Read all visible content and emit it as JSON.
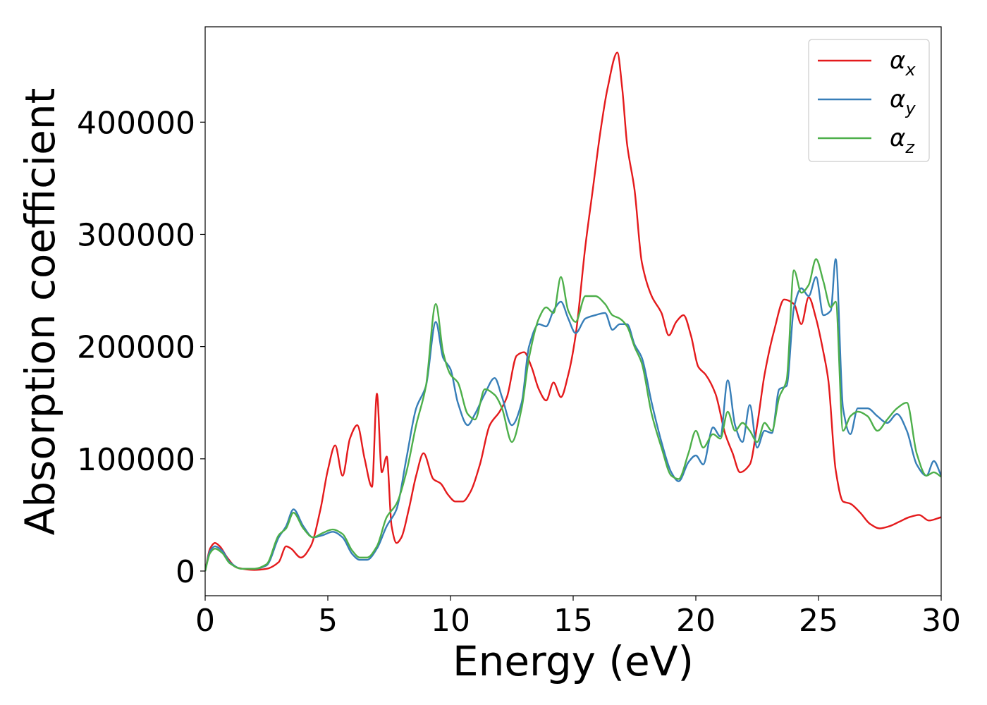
{
  "chart_data": {
    "type": "line",
    "title": "",
    "xlabel": "Energy (eV)",
    "ylabel": "Absorption coefficient",
    "xlim": [
      0,
      30
    ],
    "ylim": [
      -22000,
      485000
    ],
    "xticks": [
      0,
      5,
      10,
      15,
      20,
      25,
      30
    ],
    "xtick_labels": [
      "0",
      "5",
      "10",
      "15",
      "20",
      "25",
      "30"
    ],
    "yticks": [
      0,
      100000,
      200000,
      300000,
      400000
    ],
    "ytick_labels": [
      "0",
      "100000",
      "200000",
      "300000",
      "400000"
    ],
    "grid": false,
    "legend_position": "top-right",
    "series": [
      {
        "name": "α_x",
        "label_main": "α",
        "label_sub": "x",
        "color": "#e41a1c",
        "x": [
          0,
          0.2,
          0.4,
          0.6,
          0.9,
          1.3,
          2.0,
          2.5,
          3.0,
          3.3,
          3.5,
          3.9,
          4.3,
          4.7,
          5.0,
          5.3,
          5.6,
          5.9,
          6.2,
          6.5,
          6.8,
          7.0,
          7.2,
          7.4,
          7.6,
          7.8,
          8.0,
          8.3,
          8.6,
          8.9,
          9.3,
          9.6,
          9.9,
          10.2,
          10.5,
          10.8,
          11.2,
          11.6,
          12.0,
          12.3,
          12.7,
          13.0,
          13.3,
          13.6,
          13.9,
          14.2,
          14.5,
          14.8,
          15.1,
          15.5,
          15.8,
          16.1,
          16.4,
          16.8,
          17.0,
          17.2,
          17.5,
          17.8,
          18.2,
          18.6,
          18.9,
          19.2,
          19.5,
          19.8,
          20.1,
          20.4,
          20.8,
          21.2,
          21.5,
          21.8,
          22.2,
          22.5,
          22.8,
          23.2,
          23.6,
          24.0,
          24.3,
          24.6,
          24.9,
          25.2,
          25.4,
          25.7,
          26.0,
          26.3,
          26.7,
          27.1,
          27.5,
          27.9,
          28.3,
          28.7,
          29.1,
          29.5,
          30.0
        ],
        "y": [
          0,
          20000,
          25000,
          22000,
          12000,
          3000,
          1000,
          2000,
          8000,
          22000,
          20000,
          12000,
          22000,
          55000,
          90000,
          112000,
          85000,
          118000,
          130000,
          100000,
          75000,
          158000,
          88000,
          102000,
          40000,
          25000,
          30000,
          55000,
          85000,
          105000,
          82000,
          78000,
          68000,
          62000,
          62000,
          70000,
          95000,
          130000,
          142000,
          155000,
          192000,
          195000,
          182000,
          162000,
          152000,
          168000,
          155000,
          175000,
          210000,
          290000,
          340000,
          390000,
          430000,
          462000,
          430000,
          380000,
          340000,
          275000,
          245000,
          230000,
          210000,
          222000,
          228000,
          210000,
          182000,
          175000,
          158000,
          122000,
          105000,
          88000,
          95000,
          130000,
          175000,
          215000,
          242000,
          238000,
          220000,
          244000,
          225000,
          195000,
          170000,
          90000,
          62000,
          60000,
          52000,
          42000,
          38000,
          40000,
          44000,
          48000,
          50000,
          45000,
          48000
        ]
      },
      {
        "name": "α_y",
        "label_main": "α",
        "label_sub": "y",
        "color": "#377eb8",
        "x": [
          0,
          0.2,
          0.4,
          0.7,
          1.0,
          1.5,
          2.0,
          2.5,
          3.0,
          3.3,
          3.6,
          4.0,
          4.4,
          4.8,
          5.2,
          5.6,
          6.0,
          6.3,
          6.6,
          7.0,
          7.4,
          7.8,
          8.2,
          8.6,
          9.0,
          9.4,
          9.7,
          10.0,
          10.3,
          10.7,
          11.0,
          11.4,
          11.8,
          12.1,
          12.5,
          12.9,
          13.2,
          13.6,
          13.9,
          14.2,
          14.5,
          14.8,
          15.1,
          15.5,
          15.9,
          16.3,
          16.6,
          16.9,
          17.2,
          17.5,
          17.8,
          18.2,
          18.6,
          19.0,
          19.3,
          19.7,
          20.0,
          20.3,
          20.7,
          21.0,
          21.3,
          21.6,
          21.9,
          22.2,
          22.5,
          22.8,
          23.1,
          23.4,
          23.7,
          24.0,
          24.3,
          24.6,
          24.9,
          25.2,
          25.5,
          25.7,
          26.0,
          26.3,
          26.6,
          27.0,
          27.4,
          27.8,
          28.2,
          28.6,
          29.0,
          29.4,
          29.7,
          30.0
        ],
        "y": [
          0,
          18000,
          22000,
          18000,
          8000,
          2000,
          2000,
          5000,
          30000,
          40000,
          55000,
          40000,
          30000,
          32000,
          35000,
          30000,
          15000,
          10000,
          10000,
          20000,
          40000,
          55000,
          100000,
          145000,
          165000,
          222000,
          190000,
          180000,
          150000,
          130000,
          140000,
          158000,
          172000,
          155000,
          130000,
          150000,
          200000,
          220000,
          218000,
          232000,
          240000,
          225000,
          212000,
          225000,
          228000,
          230000,
          215000,
          220000,
          220000,
          202000,
          190000,
          150000,
          115000,
          88000,
          80000,
          97000,
          103000,
          95000,
          128000,
          120000,
          170000,
          130000,
          115000,
          148000,
          110000,
          125000,
          123000,
          162000,
          165000,
          235000,
          252000,
          245000,
          262000,
          228000,
          232000,
          278000,
          145000,
          122000,
          145000,
          145000,
          138000,
          132000,
          140000,
          125000,
          95000,
          85000,
          98000,
          85000
        ]
      },
      {
        "name": "α_z",
        "label_main": "α",
        "label_sub": "z",
        "color": "#4daf4a",
        "x": [
          0,
          0.2,
          0.4,
          0.7,
          1.0,
          1.5,
          2.0,
          2.5,
          3.0,
          3.3,
          3.6,
          4.0,
          4.4,
          4.8,
          5.2,
          5.6,
          6.0,
          6.3,
          6.6,
          7.0,
          7.4,
          7.8,
          8.2,
          8.6,
          9.0,
          9.4,
          9.7,
          10.0,
          10.3,
          10.7,
          11.0,
          11.4,
          11.8,
          12.1,
          12.5,
          12.9,
          13.2,
          13.6,
          13.9,
          14.2,
          14.5,
          14.8,
          15.1,
          15.5,
          15.9,
          16.3,
          16.6,
          16.9,
          17.2,
          17.5,
          17.8,
          18.2,
          18.6,
          19.0,
          19.3,
          19.7,
          20.0,
          20.3,
          20.7,
          21.0,
          21.3,
          21.6,
          21.9,
          22.2,
          22.5,
          22.8,
          23.1,
          23.4,
          23.7,
          24.0,
          24.3,
          24.6,
          24.9,
          25.2,
          25.5,
          25.7,
          26.0,
          26.3,
          26.6,
          27.0,
          27.4,
          27.8,
          28.2,
          28.6,
          29.0,
          29.4,
          29.7,
          30.0
        ],
        "y": [
          0,
          16000,
          20000,
          16000,
          7000,
          2000,
          2000,
          6000,
          32000,
          38000,
          52000,
          38000,
          30000,
          34000,
          37000,
          33000,
          18000,
          12000,
          12000,
          22000,
          48000,
          60000,
          88000,
          130000,
          165000,
          238000,
          195000,
          175000,
          168000,
          140000,
          135000,
          162000,
          157000,
          145000,
          115000,
          145000,
          190000,
          225000,
          235000,
          230000,
          262000,
          232000,
          222000,
          245000,
          245000,
          238000,
          228000,
          225000,
          218000,
          200000,
          185000,
          140000,
          110000,
          85000,
          82000,
          105000,
          125000,
          110000,
          122000,
          118000,
          142000,
          125000,
          132000,
          125000,
          115000,
          132000,
          125000,
          155000,
          170000,
          268000,
          248000,
          255000,
          278000,
          258000,
          235000,
          240000,
          125000,
          138000,
          142000,
          138000,
          125000,
          135000,
          145000,
          150000,
          105000,
          85000,
          88000,
          84000
        ]
      }
    ]
  }
}
